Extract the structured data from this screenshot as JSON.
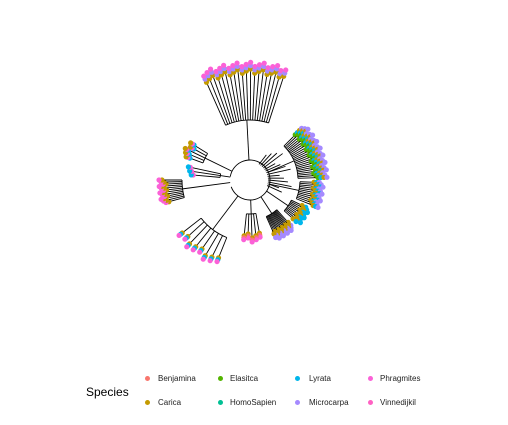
{
  "legend": {
    "title": "Species",
    "items": [
      {
        "label": "Benjamina",
        "color": "#F8766D"
      },
      {
        "label": "Carica",
        "color": "#C49A00"
      },
      {
        "label": "Elasitca",
        "color": "#53B400"
      },
      {
        "label": "HomoSapien",
        "color": "#00C094"
      },
      {
        "label": "Lyrata",
        "color": "#00B6EB"
      },
      {
        "label": "Microcarpa",
        "color": "#A58AFF"
      },
      {
        "label": "Phragmites",
        "color": "#FB61D7"
      },
      {
        "label": "Vinnedijkil",
        "color": "#FF61C3"
      }
    ]
  },
  "tree": {
    "layout": "circular-fan",
    "groups": [
      {
        "color_mix": [
          "Carica",
          "Microcarpa",
          "Phragmites"
        ],
        "tips": 20
      },
      {
        "color_mix": [
          "Elasitca",
          "Lyrata",
          "Carica",
          "Microcarpa"
        ],
        "tips": 24
      },
      {
        "color_mix": [
          "Carica",
          "Lyrata",
          "Microcarpa"
        ],
        "tips": 12
      },
      {
        "color_mix": [
          "Carica",
          "Lyrata"
        ],
        "tips": 10
      },
      {
        "color_mix": [
          "Carica",
          "Microcarpa"
        ],
        "tips": 14
      },
      {
        "color_mix": [
          "Carica",
          "Benjamina",
          "Phragmites"
        ],
        "tips": 5
      },
      {
        "color_mix": [
          "Carica",
          "Lyrata",
          "Phragmites"
        ],
        "tips": 8
      },
      {
        "color_mix": [
          "Carica",
          "Phragmites"
        ],
        "tips": 12
      }
    ]
  }
}
